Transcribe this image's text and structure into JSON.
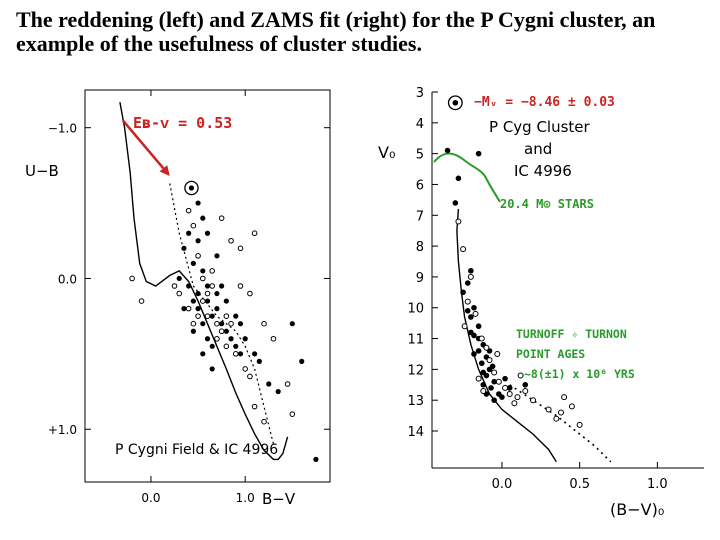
{
  "title": "The reddening (left) and ZAMS fit (right) for the P Cygni cluster, an example of the usefulness of cluster studies.",
  "chart_data": [
    {
      "type": "scatter",
      "title": "P Cygni Field & IC 4996",
      "xlabel": "B−V",
      "ylabel": "U−B",
      "xlim": [
        -0.7,
        1.9
      ],
      "ylim": [
        -1.25,
        1.35
      ],
      "y_inverted": true,
      "xticks": [
        {
          "v": 0.0,
          "label": "0.0"
        },
        {
          "v": 1.0,
          "label": "1.0"
        }
      ],
      "yticks": [
        {
          "v": -1.0,
          "label": "−1.0"
        },
        {
          "v": 0.0,
          "label": "0.0"
        },
        {
          "v": 1.0,
          "label": "+1.0"
        }
      ],
      "annotation": "Eʙ-ᴠ = 0.53",
      "annotation_color": "#cc2222",
      "zams_curve": [
        [
          -0.33,
          -1.17
        ],
        [
          -0.28,
          -1.0
        ],
        [
          -0.22,
          -0.7
        ],
        [
          -0.18,
          -0.4
        ],
        [
          -0.12,
          -0.1
        ],
        [
          -0.05,
          0.02
        ],
        [
          0.05,
          0.05
        ],
        [
          0.2,
          -0.02
        ],
        [
          0.3,
          -0.05
        ],
        [
          0.4,
          0.02
        ],
        [
          0.5,
          0.15
        ],
        [
          0.6,
          0.3
        ],
        [
          0.7,
          0.45
        ],
        [
          0.8,
          0.6
        ],
        [
          0.9,
          0.76
        ],
        [
          1.0,
          0.9
        ],
        [
          1.1,
          1.03
        ],
        [
          1.2,
          1.14
        ],
        [
          1.3,
          1.2
        ],
        [
          1.35,
          1.2
        ],
        [
          1.4,
          1.16
        ],
        [
          1.45,
          1.05
        ]
      ],
      "reddened_track": [
        [
          0.2,
          -0.63
        ],
        [
          0.3,
          -0.3
        ],
        [
          0.45,
          0.05
        ],
        [
          0.7,
          0.25
        ],
        [
          0.9,
          0.35
        ],
        [
          1.0,
          0.45
        ],
        [
          1.1,
          0.6
        ],
        [
          1.2,
          0.85
        ],
        [
          1.3,
          1.1
        ]
      ],
      "reddening_vector": {
        "from": [
          -0.3,
          -1.05
        ],
        "to": [
          0.2,
          -0.68
        ]
      },
      "circled_star": [
        0.43,
        -0.6
      ],
      "filled_points": [
        [
          0.35,
          -0.2
        ],
        [
          0.4,
          -0.3
        ],
        [
          0.45,
          -0.1
        ],
        [
          0.5,
          -0.25
        ],
        [
          0.55,
          -0.05
        ],
        [
          0.4,
          0.05
        ],
        [
          0.5,
          0.1
        ],
        [
          0.6,
          0.15
        ],
        [
          0.65,
          0.25
        ],
        [
          0.7,
          0.2
        ],
        [
          0.75,
          0.3
        ],
        [
          0.8,
          0.35
        ],
        [
          0.55,
          0.3
        ],
        [
          0.5,
          0.2
        ],
        [
          0.45,
          0.15
        ],
        [
          0.6,
          0.05
        ],
        [
          0.7,
          0.1
        ],
        [
          0.85,
          0.4
        ],
        [
          0.9,
          0.45
        ],
        [
          0.95,
          0.5
        ],
        [
          1.0,
          0.4
        ],
        [
          0.65,
          0.45
        ],
        [
          0.6,
          0.4
        ],
        [
          0.55,
          -0.4
        ],
        [
          0.5,
          -0.5
        ],
        [
          0.6,
          -0.3
        ],
        [
          0.7,
          -0.15
        ],
        [
          0.75,
          0.05
        ],
        [
          0.8,
          0.15
        ],
        [
          0.9,
          0.25
        ],
        [
          0.95,
          0.3
        ],
        [
          1.1,
          0.5
        ],
        [
          1.15,
          0.55
        ],
        [
          1.25,
          0.7
        ],
        [
          1.35,
          0.75
        ],
        [
          1.5,
          0.3
        ],
        [
          1.6,
          0.55
        ],
        [
          1.75,
          1.2
        ],
        [
          0.3,
          0.0
        ],
        [
          0.35,
          0.2
        ],
        [
          0.45,
          0.35
        ],
        [
          0.55,
          0.5
        ],
        [
          0.65,
          0.6
        ]
      ],
      "open_points": [
        [
          0.4,
          -0.45
        ],
        [
          0.45,
          -0.35
        ],
        [
          0.5,
          -0.15
        ],
        [
          0.55,
          0.0
        ],
        [
          0.6,
          0.1
        ],
        [
          0.65,
          0.05
        ],
        [
          0.7,
          0.3
        ],
        [
          0.75,
          0.35
        ],
        [
          0.8,
          0.25
        ],
        [
          0.85,
          0.3
        ],
        [
          0.5,
          0.25
        ],
        [
          0.45,
          0.3
        ],
        [
          0.4,
          0.2
        ],
        [
          0.55,
          0.15
        ],
        [
          0.6,
          0.25
        ],
        [
          0.7,
          0.4
        ],
        [
          0.8,
          0.45
        ],
        [
          0.9,
          0.5
        ],
        [
          1.0,
          0.6
        ],
        [
          1.05,
          0.65
        ],
        [
          0.95,
          0.05
        ],
        [
          1.05,
          0.1
        ],
        [
          1.2,
          0.3
        ],
        [
          1.3,
          0.4
        ],
        [
          1.45,
          0.7
        ],
        [
          1.1,
          0.85
        ],
        [
          1.2,
          0.95
        ],
        [
          -0.1,
          0.15
        ],
        [
          -0.2,
          0.0
        ],
        [
          0.25,
          0.05
        ],
        [
          0.3,
          0.1
        ],
        [
          0.85,
          -0.25
        ],
        [
          0.95,
          -0.2
        ],
        [
          1.1,
          -0.3
        ],
        [
          0.75,
          -0.4
        ],
        [
          1.5,
          0.9
        ],
        [
          0.65,
          -0.05
        ]
      ]
    },
    {
      "type": "scatter",
      "title": "P Cyg Cluster and IC 4996",
      "xlabel": "(B−V)₀",
      "ylabel": "V₀",
      "xlim": [
        -0.45,
        1.3
      ],
      "ylim": [
        3.0,
        15.2
      ],
      "y_inverted": true,
      "xticks": [
        {
          "v": 0.0,
          "label": "0.0"
        },
        {
          "v": 0.5,
          "label": "0.5"
        },
        {
          "v": 1.0,
          "label": "1.0"
        }
      ],
      "yticks": [
        {
          "v": 3,
          "label": "3"
        },
        {
          "v": 4,
          "label": "4"
        },
        {
          "v": 5,
          "label": "5"
        },
        {
          "v": 6,
          "label": "6"
        },
        {
          "v": 7,
          "label": "7"
        },
        {
          "v": 8,
          "label": "8"
        },
        {
          "v": 9,
          "label": "9"
        },
        {
          "v": 10,
          "label": "10"
        },
        {
          "v": 11,
          "label": "11"
        },
        {
          "v": 12,
          "label": "12"
        },
        {
          "v": 13,
          "label": "13"
        },
        {
          "v": 14,
          "label": "14"
        }
      ],
      "annotations": [
        {
          "text": "−Mᵥ = −8.46 ± 0.03",
          "color": "#cc2222"
        },
        {
          "text": "20.4 M⊙ STARS",
          "color": "#2a9a2a"
        },
        {
          "text": "TURNOFF ✧ TURNON",
          "color": "#2a9a2a"
        },
        {
          "text": "POINT AGES",
          "color": "#2a9a2a"
        },
        {
          "text": "~8(±1) x 10⁶ YRS",
          "color": "#2a9a2a"
        }
      ],
      "zams_curve": [
        [
          -0.28,
          6.8
        ],
        [
          -0.29,
          7.5
        ],
        [
          -0.28,
          8.5
        ],
        [
          -0.26,
          9.5
        ],
        [
          -0.24,
          10.3
        ],
        [
          -0.2,
          11.2
        ],
        [
          -0.15,
          12.0
        ],
        [
          -0.08,
          12.8
        ],
        [
          0.0,
          13.3
        ],
        [
          0.1,
          13.7
        ],
        [
          0.2,
          14.1
        ],
        [
          0.3,
          14.6
        ],
        [
          0.35,
          15.0
        ]
      ],
      "dotted_sequence": [
        [
          0.05,
          12.5
        ],
        [
          0.2,
          13.0
        ],
        [
          0.35,
          13.5
        ],
        [
          0.5,
          14.1
        ],
        [
          0.6,
          14.5
        ],
        [
          0.7,
          15.0
        ]
      ],
      "circled_star": [
        -0.3,
        3.35
      ],
      "filled_points": [
        [
          -0.35,
          4.9
        ],
        [
          -0.15,
          5.0
        ],
        [
          -0.28,
          5.8
        ],
        [
          -0.3,
          6.6
        ],
        [
          -0.2,
          8.8
        ],
        [
          -0.22,
          9.2
        ],
        [
          -0.25,
          9.5
        ],
        [
          -0.18,
          10.0
        ],
        [
          -0.2,
          10.3
        ],
        [
          -0.15,
          10.6
        ],
        [
          -0.18,
          10.9
        ],
        [
          -0.12,
          11.2
        ],
        [
          -0.15,
          11.4
        ],
        [
          -0.1,
          11.6
        ],
        [
          -0.13,
          11.8
        ],
        [
          -0.08,
          12.0
        ],
        [
          -0.1,
          12.2
        ],
        [
          -0.05,
          12.4
        ],
        [
          -0.12,
          12.1
        ],
        [
          -0.07,
          12.6
        ],
        [
          -0.02,
          12.8
        ],
        [
          0.0,
          12.9
        ],
        [
          -0.15,
          11.0
        ],
        [
          -0.18,
          11.5
        ],
        [
          -0.12,
          12.5
        ],
        [
          0.02,
          12.3
        ],
        [
          0.05,
          12.6
        ],
        [
          -0.08,
          11.4
        ],
        [
          -0.1,
          12.8
        ],
        [
          -0.05,
          13.0
        ],
        [
          0.15,
          12.5
        ],
        [
          -0.2,
          10.8
        ],
        [
          -0.22,
          10.1
        ],
        [
          -0.06,
          11.9
        ]
      ],
      "open_points": [
        [
          -0.28,
          7.2
        ],
        [
          -0.25,
          8.1
        ],
        [
          -0.2,
          9.0
        ],
        [
          -0.22,
          9.8
        ],
        [
          -0.17,
          10.2
        ],
        [
          -0.13,
          11.0
        ],
        [
          -0.1,
          11.3
        ],
        [
          -0.08,
          11.7
        ],
        [
          -0.05,
          12.1
        ],
        [
          -0.02,
          12.4
        ],
        [
          0.02,
          12.6
        ],
        [
          0.05,
          12.8
        ],
        [
          0.1,
          12.9
        ],
        [
          0.15,
          12.7
        ],
        [
          0.2,
          13.0
        ],
        [
          0.3,
          13.3
        ],
        [
          0.35,
          13.6
        ],
        [
          0.4,
          12.9
        ],
        [
          0.45,
          13.2
        ],
        [
          0.5,
          13.8
        ],
        [
          -0.15,
          12.3
        ],
        [
          -0.12,
          12.7
        ],
        [
          0.08,
          13.1
        ],
        [
          -0.03,
          11.5
        ],
        [
          -0.24,
          10.6
        ],
        [
          0.38,
          13.4
        ],
        [
          0.12,
          12.2
        ]
      ]
    }
  ]
}
